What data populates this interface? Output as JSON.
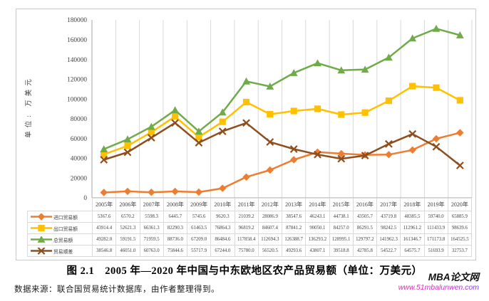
{
  "chart_data": {
    "type": "line",
    "title": "",
    "xlabel": "",
    "ylabel": "单位: 万美元",
    "ylim": [
      0,
      180000
    ],
    "y_step": 20000,
    "grid": "vertical-category-gridlines-only",
    "legend_position": "left-column-of-data-table",
    "categories": [
      "2005年",
      "2006年",
      "2007年",
      "2008年",
      "2009年",
      "2010年",
      "2011年",
      "2012年",
      "2013年",
      "2014年",
      "2015年",
      "2016年",
      "2017年",
      "2018年",
      "2019年",
      "2020年"
    ],
    "series": [
      {
        "name": "进口贸易额",
        "color": "#ED7D31",
        "marker": "diamond",
        "values": [
          5367.6,
          6570.2,
          5598.3,
          6445.7,
          5745.6,
          9620.3,
          21039.2,
          28086.9,
          38547.6,
          46243.1,
          44738.1,
          43505.7,
          43719.8,
          48385.5,
          59740.0,
          65885.9
        ]
      },
      {
        "name": "出口贸易额",
        "color": "#FFC000",
        "marker": "square",
        "values": [
          43914.4,
          52621.3,
          66361.3,
          82290.3,
          61463.5,
          76864.3,
          96819.2,
          84607.4,
          87841.2,
          90050.1,
          84257.0,
          86291.5,
          98242.5,
          112961.2,
          111433.9,
          98639.6
        ]
      },
      {
        "name": "总贸易额",
        "color": "#6FAC47",
        "marker": "triangle",
        "values": [
          49282.0,
          59191.5,
          71959.5,
          88736.0,
          67209.0,
          86484.6,
          117858.4,
          112694.3,
          126388.7,
          136293.2,
          128995.1,
          129797.2,
          141962.3,
          161346.7,
          171173.8,
          164525.5
        ]
      },
      {
        "name": "贸易顺差",
        "color": "#8E4E1E",
        "marker": "x",
        "values": [
          38546.8,
          46051.0,
          60763.0,
          75844.6,
          55717.9,
          67244.0,
          75780.0,
          56520.5,
          49293.6,
          43807.1,
          39518.8,
          42785.8,
          54522.7,
          64575.7,
          51693.9,
          32753.7
        ]
      }
    ]
  },
  "caption": "图 2.1　2005 年—2020 年中国与中东欧地区农产品贸易额（单位：万美元）",
  "source": "数据来源：联合国贸易统计数据库，由作者整理得到。",
  "watermark": {
    "title": "MBA论文网",
    "url": "www.51mbalunwen.com"
  },
  "colors": {
    "gridline": "#d9d9d9",
    "axis_line": "#a6a6a6",
    "table_border": "#d9d9d9",
    "figure_border": "#c9c9c9",
    "chart_text": "#3f3f3f"
  }
}
